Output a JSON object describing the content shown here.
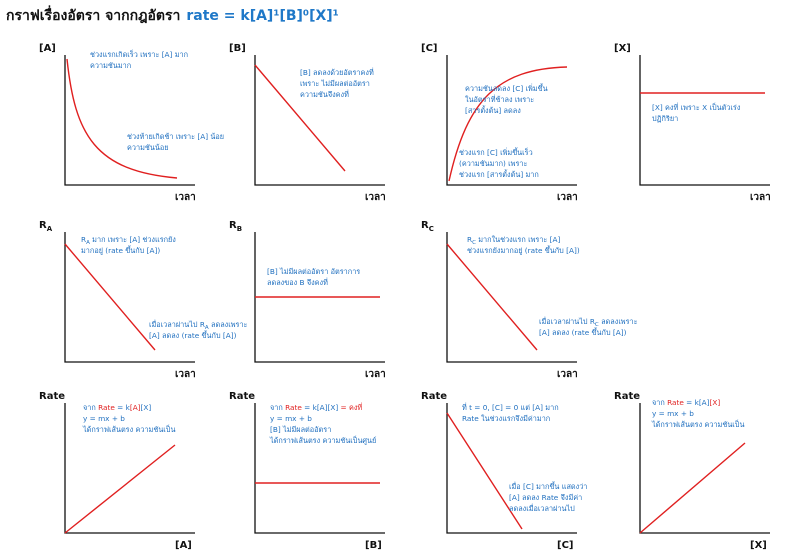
{
  "title": {
    "text": "กราฟเรื่องอัตรา จากกฎอัตรา",
    "equation": "rate = k[A]¹[B]⁰[X]¹"
  },
  "panels": [
    {
      "y_label": "[A]",
      "x_label": "เวลา",
      "notes": [
        [
          "ช่วงแรกเกิดเร็ว เพราะ [A] มาก",
          "ความชันมาก"
        ],
        [
          "ช่วงท้ายเกิดช้า เพราะ [A] น้อย",
          "ความชันน้อย"
        ]
      ]
    },
    {
      "y_label": "[B]",
      "x_label": "เวลา",
      "notes": [
        [
          "[B] ลดลงด้วยอัตราคงที่",
          "เพราะ ไม่มีผลต่ออัตรา",
          "ความชันจึงคงที่"
        ]
      ]
    },
    {
      "y_label": "[C]",
      "x_label": "เวลา",
      "notes": [
        [
          "ความชันลดลง [C] เพิ่มขึ้น",
          "ในอัตราที่ช้าลง เพราะ",
          "[สารตั้งต้น] ลดลง"
        ],
        [
          "ช่วงแรก [C] เพิ่มขึ้นเร็ว",
          "(ความชันมาก) เพราะ",
          "ช่วงแรก [สารตั้งต้น] มาก"
        ]
      ]
    },
    {
      "y_label": "[X]",
      "x_label": "เวลา",
      "notes": [
        [
          "[X] คงที่ เพราะ X เป็นตัวเร่ง",
          "ปฏิกิริยา"
        ]
      ]
    },
    {
      "y_label": {
        "text": "R",
        "sub": "A"
      },
      "x_label": "เวลา",
      "notes": [
        [
          [
            "R",
            {
              "sub": "A"
            },
            " มาก เพราะ [A] ช่วงแรกยัง"
          ],
          "มากอยู่ (rate ขึ้นกับ [A])"
        ],
        [
          [
            "เมื่อเวลาผ่านไป R",
            {
              "sub": "A"
            },
            " ลดลงเพราะ"
          ],
          "[A] ลดลง (rate ขึ้นกับ [A])"
        ]
      ]
    },
    {
      "y_label": {
        "text": "R",
        "sub": "B"
      },
      "x_label": "เวลา",
      "notes": [
        [
          "[B] ไม่มีผลต่ออัตรา อัตราการ",
          "ลดลงของ B จึงคงที่"
        ]
      ]
    },
    {
      "y_label": {
        "text": "R",
        "sub": "C"
      },
      "x_label": "เวลา",
      "notes": [
        [
          [
            "R",
            {
              "sub": "C"
            },
            " มากในช่วงแรก เพราะ [A]"
          ],
          "ช่วงแรกยังมากอยู่ (rate ขึ้นกับ [A])"
        ],
        [
          [
            "เมื่อเวลาผ่านไป R",
            {
              "sub": "C"
            },
            " ลดลงเพราะ"
          ],
          "[A] ลดลง (rate ขึ้นกับ [A])"
        ]
      ]
    },
    {
      "y_label": "Rate",
      "x_label": "[A]",
      "notes": [
        [
          [
            "จาก ",
            {
              "text": "Rate",
              "color": "#e02020"
            },
            " = k",
            {
              "text": "[A]",
              "color": "#e02020"
            },
            "[X]"
          ],
          "y = mx + b",
          "ได้กราฟเส้นตรง ความชันเป็น"
        ]
      ]
    },
    {
      "y_label": "Rate",
      "x_label": "[B]",
      "notes": [
        [
          [
            "จาก ",
            {
              "text": "Rate",
              "color": "#e02020"
            },
            " = k[A][X] ",
            {
              "text": "= คงที่",
              "color": "#e02020"
            }
          ],
          "y = mx + b",
          "[B] ไม่มีผลต่ออัตรา",
          "ได้กราฟเส้นตรง ความชันเป็นศูนย์"
        ]
      ]
    },
    {
      "y_label": "Rate",
      "x_label": "[C]",
      "notes": [
        [
          "ที่ t = 0, [C] = 0 แต่ [A] มาก",
          "Rate ในช่วงแรกจึงมีค่ามาก"
        ],
        [
          "เมื่อ [C] มากขึ้น แสดงว่า",
          "[A] ลดลง Rate จึงมีค่า",
          "ลดลงเมื่อเวลาผ่านไป"
        ]
      ]
    },
    {
      "y_label": "Rate",
      "x_label": "[X]",
      "notes": [
        [
          [
            "จาก ",
            {
              "text": "Rate",
              "color": "#e02020"
            },
            " = k[A]",
            {
              "text": "[X]",
              "color": "#e02020"
            }
          ],
          "y = mx + b",
          "ได้กราฟเส้นตรง ความชันเป็น"
        ]
      ]
    }
  ]
}
